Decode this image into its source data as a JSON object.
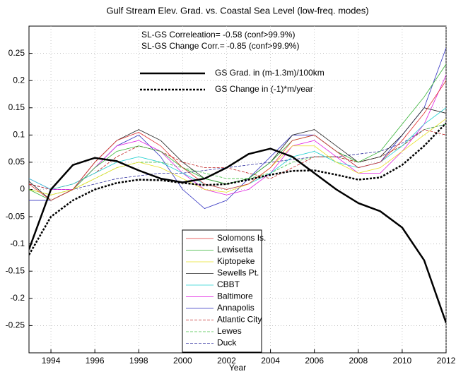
{
  "chart_data": {
    "type": "line",
    "title": "Gulf Stream Elev. Grad. vs. Coastal Sea Level (low-freq. modes)",
    "annotations": [
      "SL-GS Correleation= -0.58 (conf>99.9%)",
      "SL-GS Change Corr.= -0.85 (conf>99.9%)"
    ],
    "x_label": "Year",
    "x": [
      1993,
      1994,
      1995,
      1996,
      1997,
      1998,
      1999,
      2000,
      2001,
      2002,
      2003,
      2004,
      2005,
      2006,
      2007,
      2008,
      2009,
      2010,
      2011,
      2012
    ],
    "xlim": [
      1993,
      2012
    ],
    "xticks": [
      1994,
      1996,
      1998,
      2000,
      2002,
      2004,
      2006,
      2008,
      2010,
      2012
    ],
    "ylim": [
      -0.3,
      0.3
    ],
    "yticks": [
      -0.25,
      -0.2,
      -0.15,
      -0.1,
      -0.05,
      0,
      0.05,
      0.1,
      0.15,
      0.2,
      0.25
    ],
    "grid": true,
    "series": [
      {
        "name": "GS Grad. in (m-1.3m)/100km",
        "color": "#000000",
        "width": 2.5,
        "style": "solid",
        "legend_location": "upper center",
        "values": [
          -0.11,
          0.0,
          0.045,
          0.058,
          0.052,
          0.035,
          0.02,
          0.013,
          0.02,
          0.04,
          0.065,
          0.075,
          0.06,
          0.03,
          0.0,
          -0.025,
          -0.04,
          -0.07,
          -0.13,
          -0.245
        ]
      },
      {
        "name": "GS Change in (-1)*m/year",
        "color": "#000000",
        "width": 2.5,
        "style": "dotted",
        "legend_location": "upper center",
        "values": [
          -0.12,
          -0.05,
          -0.02,
          0.0,
          0.012,
          0.018,
          0.017,
          0.012,
          0.008,
          0.01,
          0.018,
          0.027,
          0.034,
          0.035,
          0.027,
          0.018,
          0.022,
          0.045,
          0.08,
          0.122
        ]
      },
      {
        "name": "Solomons Is.",
        "color": "#e03030",
        "width": 0.8,
        "style": "solid",
        "legend_location": "lower center",
        "values": [
          0.01,
          -0.02,
          0.0,
          0.05,
          0.09,
          0.105,
          0.08,
          0.04,
          0.01,
          0.0,
          0.01,
          0.04,
          0.09,
          0.1,
          0.07,
          0.04,
          0.05,
          0.09,
          0.14,
          0.2
        ]
      },
      {
        "name": "Lewisetta",
        "color": "#30b030",
        "width": 0.8,
        "style": "solid",
        "legend_location": "lower center",
        "values": [
          0.0,
          -0.02,
          0.0,
          0.04,
          0.07,
          0.08,
          0.07,
          0.04,
          0.02,
          0.01,
          0.02,
          0.05,
          0.09,
          0.1,
          0.07,
          0.05,
          0.07,
          0.12,
          0.17,
          0.23
        ]
      },
      {
        "name": "Kiptopeke",
        "color": "#e8e020",
        "width": 0.8,
        "style": "solid",
        "legend_location": "lower center",
        "values": [
          0.0,
          -0.01,
          0.0,
          0.02,
          0.04,
          0.05,
          0.04,
          0.02,
          0.0,
          -0.005,
          0.01,
          0.04,
          0.08,
          0.08,
          0.05,
          0.03,
          0.04,
          0.07,
          0.1,
          0.13
        ]
      },
      {
        "name": "Sewells Pt.",
        "color": "#202020",
        "width": 0.8,
        "style": "solid",
        "legend_location": "lower center",
        "values": [
          0.015,
          -0.02,
          0.0,
          0.05,
          0.09,
          0.11,
          0.09,
          0.05,
          0.02,
          0.01,
          0.02,
          0.05,
          0.1,
          0.11,
          0.08,
          0.05,
          0.06,
          0.1,
          0.15,
          0.14
        ]
      },
      {
        "name": "CBBT",
        "color": "#20d0d0",
        "width": 0.8,
        "style": "solid",
        "legend_location": "lower center",
        "values": [
          0.02,
          0.0,
          0.01,
          0.03,
          0.05,
          0.06,
          0.05,
          0.03,
          0.01,
          0.0,
          0.01,
          0.03,
          0.06,
          0.07,
          0.05,
          0.04,
          0.05,
          0.08,
          0.12,
          0.15
        ]
      },
      {
        "name": "Baltimore",
        "color": "#e020e0",
        "width": 0.8,
        "style": "solid",
        "legend_location": "lower center",
        "values": [
          0.02,
          0.0,
          0.0,
          0.04,
          0.08,
          0.09,
          0.07,
          0.03,
          0.0,
          -0.01,
          0.0,
          0.03,
          0.08,
          0.09,
          0.06,
          0.03,
          0.03,
          0.07,
          0.12,
          0.21
        ]
      },
      {
        "name": "Annapolis",
        "color": "#3030c0",
        "width": 0.8,
        "style": "solid",
        "legend_location": "lower center",
        "values": [
          -0.02,
          -0.02,
          0.0,
          0.04,
          0.08,
          0.1,
          0.06,
          0.0,
          -0.035,
          -0.02,
          0.02,
          0.06,
          0.1,
          0.1,
          0.07,
          0.04,
          0.05,
          0.1,
          0.15,
          0.26
        ]
      },
      {
        "name": "Atlantic City",
        "color": "#c02020",
        "width": 0.8,
        "style": "dashed",
        "legend_location": "lower center",
        "values": [
          0.01,
          0.0,
          0.01,
          0.03,
          0.06,
          0.08,
          0.07,
          0.05,
          0.04,
          0.04,
          0.03,
          0.02,
          0.04,
          0.06,
          0.06,
          0.05,
          0.06,
          0.08,
          0.11,
          0.1
        ]
      },
      {
        "name": "Lewes",
        "color": "#40c040",
        "width": 0.8,
        "style": "dashed",
        "legend_location": "lower center",
        "values": [
          0.0,
          -0.01,
          0.0,
          0.02,
          0.04,
          0.05,
          0.05,
          0.04,
          0.03,
          0.02,
          0.02,
          0.03,
          0.05,
          0.06,
          0.06,
          0.05,
          0.06,
          0.08,
          0.11,
          0.12
        ]
      },
      {
        "name": "Duck",
        "color": "#3030a0",
        "width": 0.8,
        "style": "dashed",
        "legend_location": "lower center",
        "values": [
          0.01,
          0.0,
          0.0,
          0.01,
          0.02,
          0.025,
          0.03,
          0.03,
          0.035,
          0.04,
          0.045,
          0.05,
          0.055,
          0.06,
          0.06,
          0.065,
          0.07,
          0.085,
          0.11,
          0.12
        ]
      }
    ]
  }
}
